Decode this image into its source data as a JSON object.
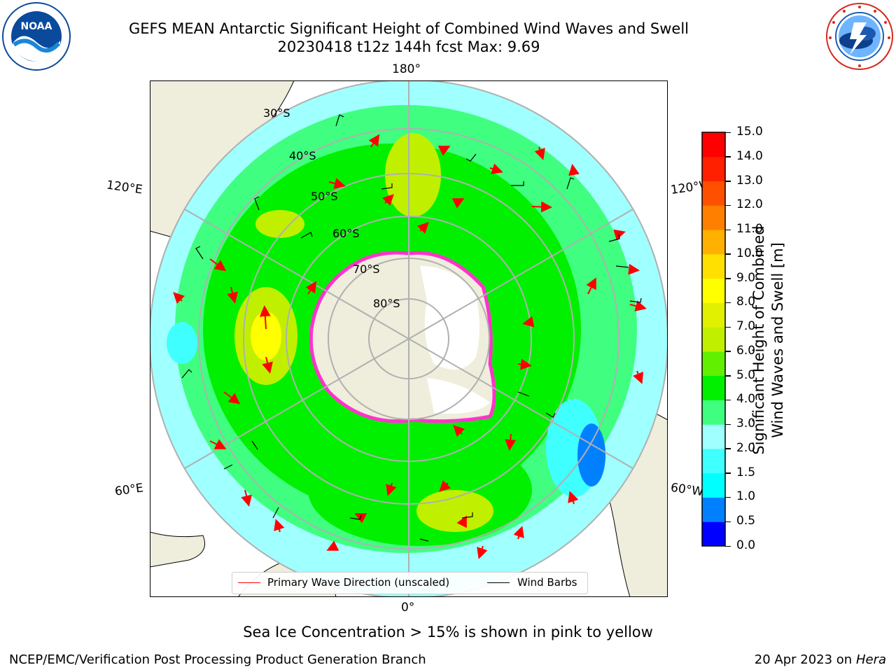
{
  "header": {
    "title_line1": "GEFS MEAN Antarctic Significant Height of Combined Wind Waves and Swell",
    "title_line2": "20230418 t12z 144h fcst   Max: 9.69"
  },
  "logos": {
    "noaa_text": "NOAA",
    "noaa_ring": "NATIONAL OCEANIC AND ATMOSPHERIC ADMINISTRATION · U.S. DEPARTMENT OF COMMERCE",
    "nws_ring": "NATIONAL WEATHER SERVICE"
  },
  "map": {
    "longitude_labels": {
      "top": "180°",
      "bottom": "0°",
      "upper_left": "120°E",
      "upper_right": "120°W",
      "lower_left": "60°E",
      "lower_right": "60°W"
    },
    "latitude_labels": [
      "30°S",
      "40°S",
      "50°S",
      "60°S",
      "70°S",
      "80°S"
    ],
    "colors": {
      "land": "#efeddc",
      "ice_shelf": "#ffffff",
      "ocean_low": "#a0ffff",
      "grid": "#b0b0b0",
      "sea_ice_edge": "#ff33cc",
      "arrow": "#ff0000"
    }
  },
  "legend": {
    "primary_wave": "Primary Wave Direction (unscaled)",
    "wind_barbs": "Wind Barbs",
    "primary_wave_color": "#ff0000",
    "wind_barbs_color": "#000000"
  },
  "colorbar": {
    "label_line1": "Significant Height of Combined",
    "label_line2": "Wind Waves and Swell [m]",
    "ticks": [
      "0.0",
      "0.5",
      "1.0",
      "1.5",
      "2.0",
      "3.0",
      "4.0",
      "5.0",
      "6.0",
      "7.0",
      "8.0",
      "9.0",
      "10.0",
      "11.0",
      "12.0",
      "13.0",
      "14.0",
      "15.0"
    ],
    "colors": [
      "#0000ff",
      "#0080ff",
      "#00ffff",
      "#40ffff",
      "#a0ffff",
      "#40ff80",
      "#00f000",
      "#60f000",
      "#c0f000",
      "#e0f000",
      "#ffff00",
      "#ffe000",
      "#ffb000",
      "#ff8000",
      "#ff5000",
      "#ff2000",
      "#ff0000"
    ]
  },
  "footer": {
    "note": "Sea Ice Concentration > 15% is shown in pink to yellow",
    "left": "NCEP/EMC/Verification Post Processing Product Generation Branch",
    "date": "20 Apr 2023 on",
    "machine": "Hera"
  }
}
